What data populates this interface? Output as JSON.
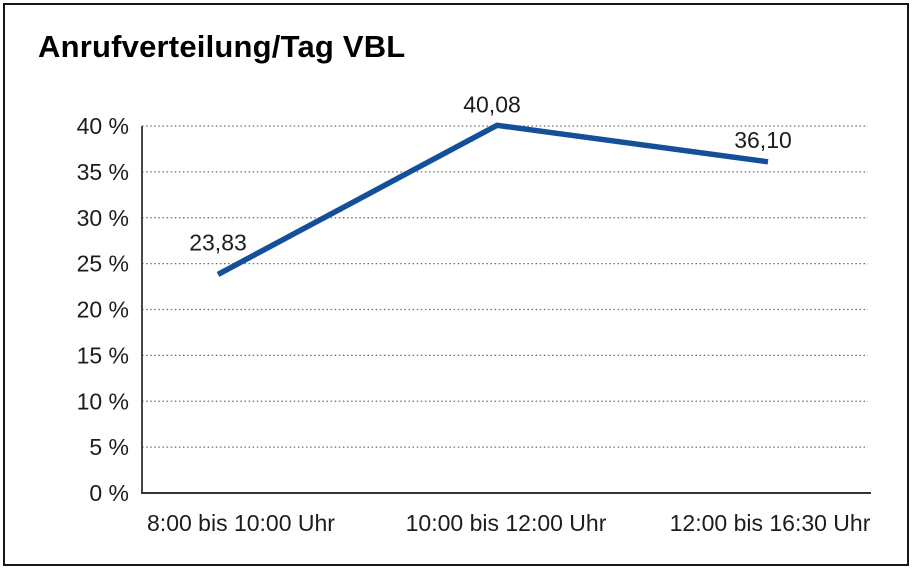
{
  "chart_data": {
    "type": "line",
    "title": "Anrufverteilung/Tag VBL",
    "categories": [
      "8:00 bis 10:00 Uhr",
      "10:00 bis 12:00 Uhr",
      "12:00 bis 16:30 Uhr"
    ],
    "values": [
      23.83,
      40.08,
      36.1
    ],
    "value_labels": [
      "23,83",
      "40,08",
      "36,10"
    ],
    "xlabel": "",
    "ylabel": "",
    "ylim": [
      0,
      40
    ],
    "y_ticks": [
      0,
      5,
      10,
      15,
      20,
      25,
      30,
      35,
      40
    ],
    "y_tick_labels": [
      "0 %",
      "5 %",
      "10 %",
      "15 %",
      "20 %",
      "25 %",
      "30 %",
      "35 %",
      "40 %"
    ],
    "grid": "horizontal-dotted",
    "legend_position": "none",
    "colors": {
      "line": "#144f9a",
      "grid": "#6e6e6e",
      "axis": "#333333",
      "text": "#1c1c1c",
      "title": "#000000",
      "background": "#ffffff",
      "frame_border": "#161616"
    }
  }
}
